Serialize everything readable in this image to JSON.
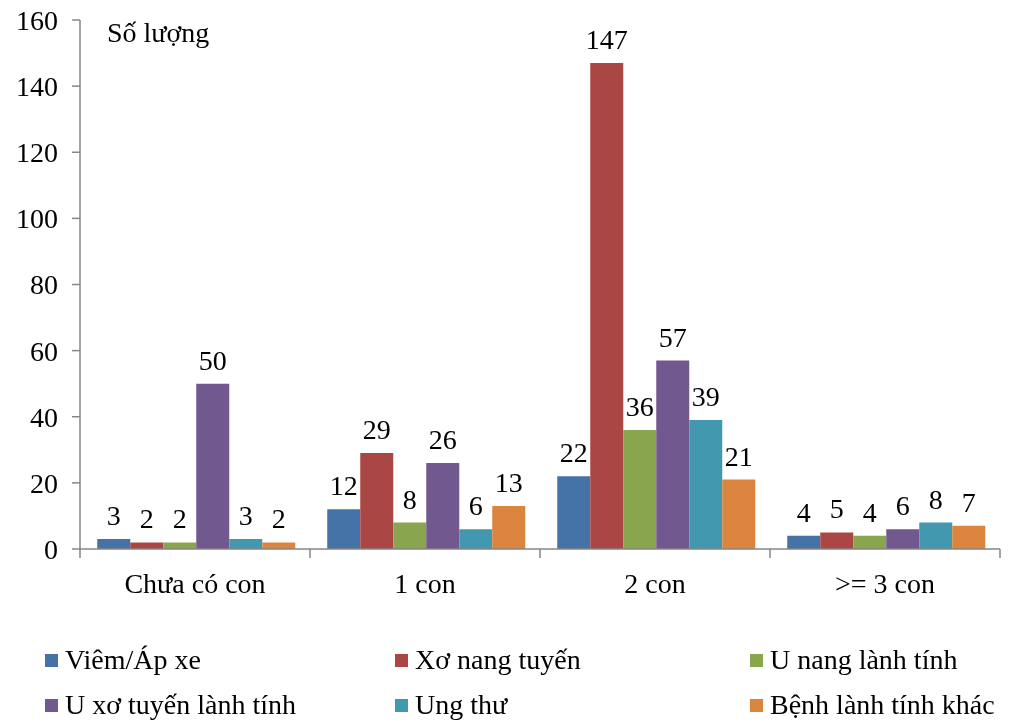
{
  "chart_data": {
    "type": "bar",
    "ylabel": "Số lượng",
    "categories": [
      "Chưa có con",
      "1 con",
      "2 con",
      ">= 3 con"
    ],
    "series": [
      {
        "name": "Viêm/Áp xe",
        "color": "#4572a7",
        "values": [
          3,
          12,
          22,
          4
        ]
      },
      {
        "name": "Xơ nang tuyến",
        "color": "#aa4643",
        "values": [
          2,
          29,
          147,
          5
        ]
      },
      {
        "name": "U nang lành tính",
        "color": "#89a54e",
        "values": [
          2,
          8,
          36,
          4
        ]
      },
      {
        "name": "U xơ tuyến lành tính",
        "color": "#71588f",
        "values": [
          50,
          26,
          57,
          6
        ]
      },
      {
        "name": "Ung thư",
        "color": "#4198af",
        "values": [
          3,
          6,
          39,
          8
        ]
      },
      {
        "name": "Bệnh lành tính khác",
        "color": "#db843d",
        "values": [
          2,
          13,
          21,
          7
        ]
      }
    ],
    "ylim": [
      0,
      160
    ],
    "yticks": [
      0,
      20,
      40,
      60,
      80,
      100,
      120,
      140,
      160
    ],
    "legend": "bottom",
    "data_labels": true
  }
}
